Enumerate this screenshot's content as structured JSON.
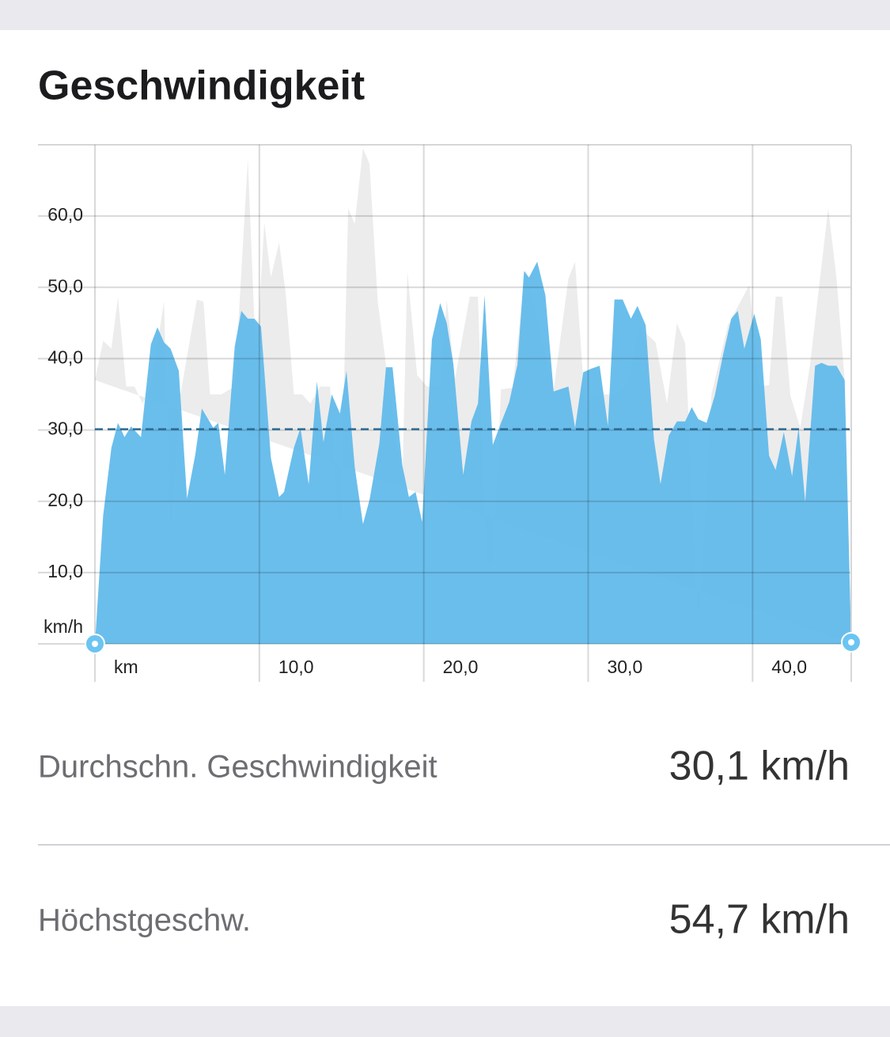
{
  "title": "Geschwindigkeit",
  "chart_data": {
    "type": "area",
    "xlim": [
      0,
      46
    ],
    "ylim": [
      0,
      70
    ],
    "xticks": [
      {
        "value": 0,
        "label": "km"
      },
      {
        "value": 10,
        "label": "10,0"
      },
      {
        "value": 20,
        "label": "20,0"
      },
      {
        "value": 30,
        "label": "30,0"
      },
      {
        "value": 40,
        "label": "40,0"
      }
    ],
    "yticks": [
      {
        "value": 0,
        "label": "km/h"
      },
      {
        "value": 10,
        "label": "10,0"
      },
      {
        "value": 20,
        "label": "20,0"
      },
      {
        "value": 30,
        "label": "30,0"
      },
      {
        "value": 40,
        "label": "40,0"
      },
      {
        "value": 50,
        "label": "50,0"
      },
      {
        "value": 60,
        "label": "60,0"
      }
    ],
    "grid": true,
    "average": 30.1,
    "average_color": "#2b6a92",
    "series": [
      {
        "color": "#ececec",
        "x": [
          0,
          0.5,
          1.0,
          1.4,
          1.9,
          2.4,
          2.9,
          3.4,
          4.2,
          4.6,
          5.2,
          6.2,
          6.6,
          7.0,
          7.7,
          8.5,
          9.3,
          9.8,
          10.3,
          10.7,
          11.2,
          11.6,
          12.1,
          12.6,
          13.1,
          13.7,
          14.3,
          14.9,
          15.4,
          15.8,
          16.3,
          16.7,
          17.2,
          17.7,
          18.7,
          19.0,
          19.6,
          20.2,
          21.0,
          21.4,
          21.9,
          22.8,
          23.3,
          23.8,
          24.2,
          24.7,
          25.4,
          26.2,
          27.9,
          28.8,
          29.2,
          29.8,
          30.4,
          31.0,
          31.7,
          32.4,
          33.1,
          34.1,
          34.8,
          35.4,
          35.9,
          36.7,
          37.5,
          38.5,
          39.8,
          40.4,
          41.0,
          41.4,
          41.8,
          42.3,
          42.9,
          43.5,
          44.0,
          44.6,
          45.1,
          45.6,
          46.0
        ],
        "values": [
          37,
          42.5,
          41.4,
          48.6,
          36.1,
          36.1,
          33.7,
          36.1,
          48,
          14.8,
          35,
          48.3,
          48,
          35,
          35,
          36.1,
          68,
          39.2,
          59.1,
          51.4,
          56.3,
          49.2,
          35,
          35,
          33.7,
          36.1,
          36.1,
          12.6,
          61.1,
          58.9,
          69.5,
          67.3,
          48,
          39.2,
          22.6,
          52.3,
          37.7,
          36.1,
          36.3,
          48.3,
          37.2,
          48.7,
          48.7,
          11.3,
          11.3,
          35.7,
          35.9,
          52.5,
          35.7,
          51.2,
          53.6,
          33.7,
          34.8,
          35,
          35,
          36.5,
          44.5,
          42.3,
          33.7,
          45,
          42.1,
          1.1,
          35,
          44.7,
          50.3,
          36.1,
          36.3,
          48.7,
          48.7,
          34.8,
          30.3,
          39.2,
          49.2,
          61.1,
          51.4,
          37,
          0
        ]
      },
      {
        "color": "#5db8ea",
        "x": [
          0,
          0.5,
          1.0,
          1.4,
          1.8,
          2.2,
          2.8,
          3.4,
          3.8,
          4.2,
          4.6,
          5.1,
          5.6,
          6.1,
          6.5,
          7.2,
          7.5,
          7.9,
          8.5,
          8.9,
          9.3,
          9.7,
          10.1,
          10.7,
          11.2,
          11.5,
          12.1,
          12.5,
          13.0,
          13.5,
          13.9,
          14.4,
          14.9,
          15.3,
          15.8,
          16.3,
          16.7,
          17.3,
          17.7,
          18.1,
          18.7,
          19.1,
          19.5,
          19.9,
          20.5,
          21.0,
          21.4,
          21.8,
          22.4,
          22.9,
          23.3,
          23.7,
          24.2,
          24.7,
          25.2,
          25.7,
          26.1,
          26.4,
          26.9,
          27.4,
          27.9,
          28.8,
          29.2,
          29.7,
          30.2,
          30.7,
          31.2,
          31.6,
          32.1,
          32.6,
          33.0,
          33.5,
          34.0,
          34.4,
          34.9,
          35.4,
          35.9,
          36.3,
          36.7,
          37.2,
          37.7,
          38.2,
          38.7,
          39.1,
          39.5,
          40.1,
          40.5,
          41.0,
          41.4,
          41.9,
          42.4,
          42.8,
          43.2,
          43.8,
          44.2,
          44.6,
          45.1,
          45.6,
          46.0
        ],
        "values": [
          0,
          18,
          27.5,
          31,
          29,
          30.5,
          29,
          42,
          44.4,
          42.3,
          41.4,
          38.3,
          20.4,
          26.5,
          33,
          30.3,
          31,
          23.7,
          41.7,
          46.7,
          45.6,
          45.6,
          44.5,
          26.1,
          20.6,
          21.3,
          27.5,
          30.3,
          22.4,
          36.8,
          28.3,
          35,
          32.3,
          38.3,
          24.8,
          16.8,
          20.2,
          28.1,
          38.8,
          38.8,
          25,
          20.6,
          21.3,
          17.1,
          42.7,
          47.8,
          45,
          39.2,
          23.7,
          31.2,
          33.7,
          48.9,
          27.9,
          31,
          33.9,
          39.2,
          52.3,
          51.4,
          53.6,
          48.9,
          35.4,
          36.1,
          30.3,
          38.1,
          38.6,
          39,
          30.6,
          48.3,
          48.3,
          45.6,
          47.4,
          44.7,
          28.7,
          22.4,
          29.2,
          31.2,
          31.2,
          33.2,
          31.5,
          31,
          34.8,
          40.5,
          45.6,
          46.7,
          41.4,
          46.3,
          42.7,
          26.4,
          24.4,
          29.7,
          23.5,
          30.3,
          19.9,
          39,
          39.4,
          39,
          39,
          37,
          0
        ]
      }
    ]
  },
  "stats": [
    {
      "label": "Durchschn. Geschwindigkeit",
      "value": "30,1 km/h"
    },
    {
      "label": "Höchstgeschw.",
      "value": "54,7 km/h"
    }
  ]
}
